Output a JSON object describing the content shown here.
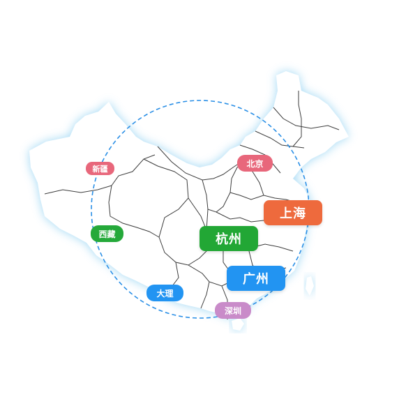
{
  "map": {
    "land_color": "#ffffff",
    "glow_color": "#8fd0f2",
    "border_color": "#3b3b3b",
    "circle_color": "#2a8fe6"
  },
  "cities": [
    {
      "id": "xinjiang",
      "name": "新疆",
      "color": "#e8677b"
    },
    {
      "id": "beijing",
      "name": "北京",
      "color": "#e8677b"
    },
    {
      "id": "shanghai",
      "name": "上海",
      "color": "#ee6a3d"
    },
    {
      "id": "xizang",
      "name": "西藏",
      "color": "#25a93a"
    },
    {
      "id": "hangzhou",
      "name": "杭州",
      "color": "#22a735"
    },
    {
      "id": "guangzhou",
      "name": "广州",
      "color": "#2294f2"
    },
    {
      "id": "dali",
      "name": "大理",
      "color": "#2294f2"
    },
    {
      "id": "shenzhen",
      "name": "深圳",
      "color": "#c98bc9"
    }
  ]
}
